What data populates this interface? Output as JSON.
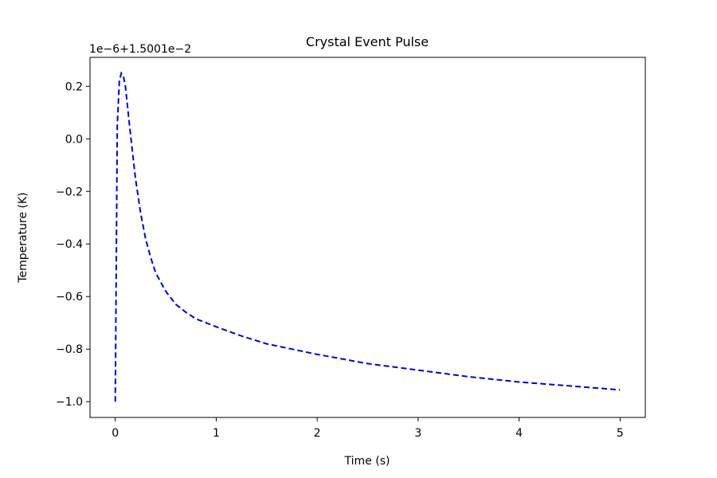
{
  "chart_data": {
    "type": "line",
    "title": "Crystal Event Pulse",
    "xlabel": "Time (s)",
    "ylabel": "Temperature (K)",
    "y_offset_label": "1e−6+1.5001e−2",
    "xlim": [
      -0.25,
      5.25
    ],
    "ylim": [
      -1.06,
      0.31
    ],
    "x_ticks": [
      0,
      1,
      2,
      3,
      4,
      5
    ],
    "x_tick_labels": [
      "0",
      "1",
      "2",
      "3",
      "4",
      "5"
    ],
    "y_ticks": [
      0.2,
      0.0,
      -0.2,
      -0.4,
      -0.6,
      -0.8,
      -1.0
    ],
    "y_tick_labels": [
      "0.2",
      "0.0",
      "−0.2",
      "−0.4",
      "−0.6",
      "−0.8",
      "−1.0"
    ],
    "grid": false,
    "series": [
      {
        "color": "#0000dd",
        "line_style": "dashed",
        "x": [
          0.0,
          0.02,
          0.04,
          0.06,
          0.08,
          0.1,
          0.15,
          0.2,
          0.25,
          0.3,
          0.35,
          0.4,
          0.5,
          0.6,
          0.7,
          0.8,
          1.0,
          1.25,
          1.5,
          1.75,
          2.0,
          2.5,
          3.0,
          3.5,
          4.0,
          4.5,
          5.0
        ],
        "y": [
          -1.0,
          0.05,
          0.22,
          0.25,
          0.24,
          0.2,
          0.02,
          -0.15,
          -0.28,
          -0.38,
          -0.45,
          -0.51,
          -0.58,
          -0.63,
          -0.66,
          -0.685,
          -0.715,
          -0.75,
          -0.78,
          -0.8,
          -0.82,
          -0.855,
          -0.88,
          -0.905,
          -0.925,
          -0.94,
          -0.955
        ]
      }
    ]
  }
}
